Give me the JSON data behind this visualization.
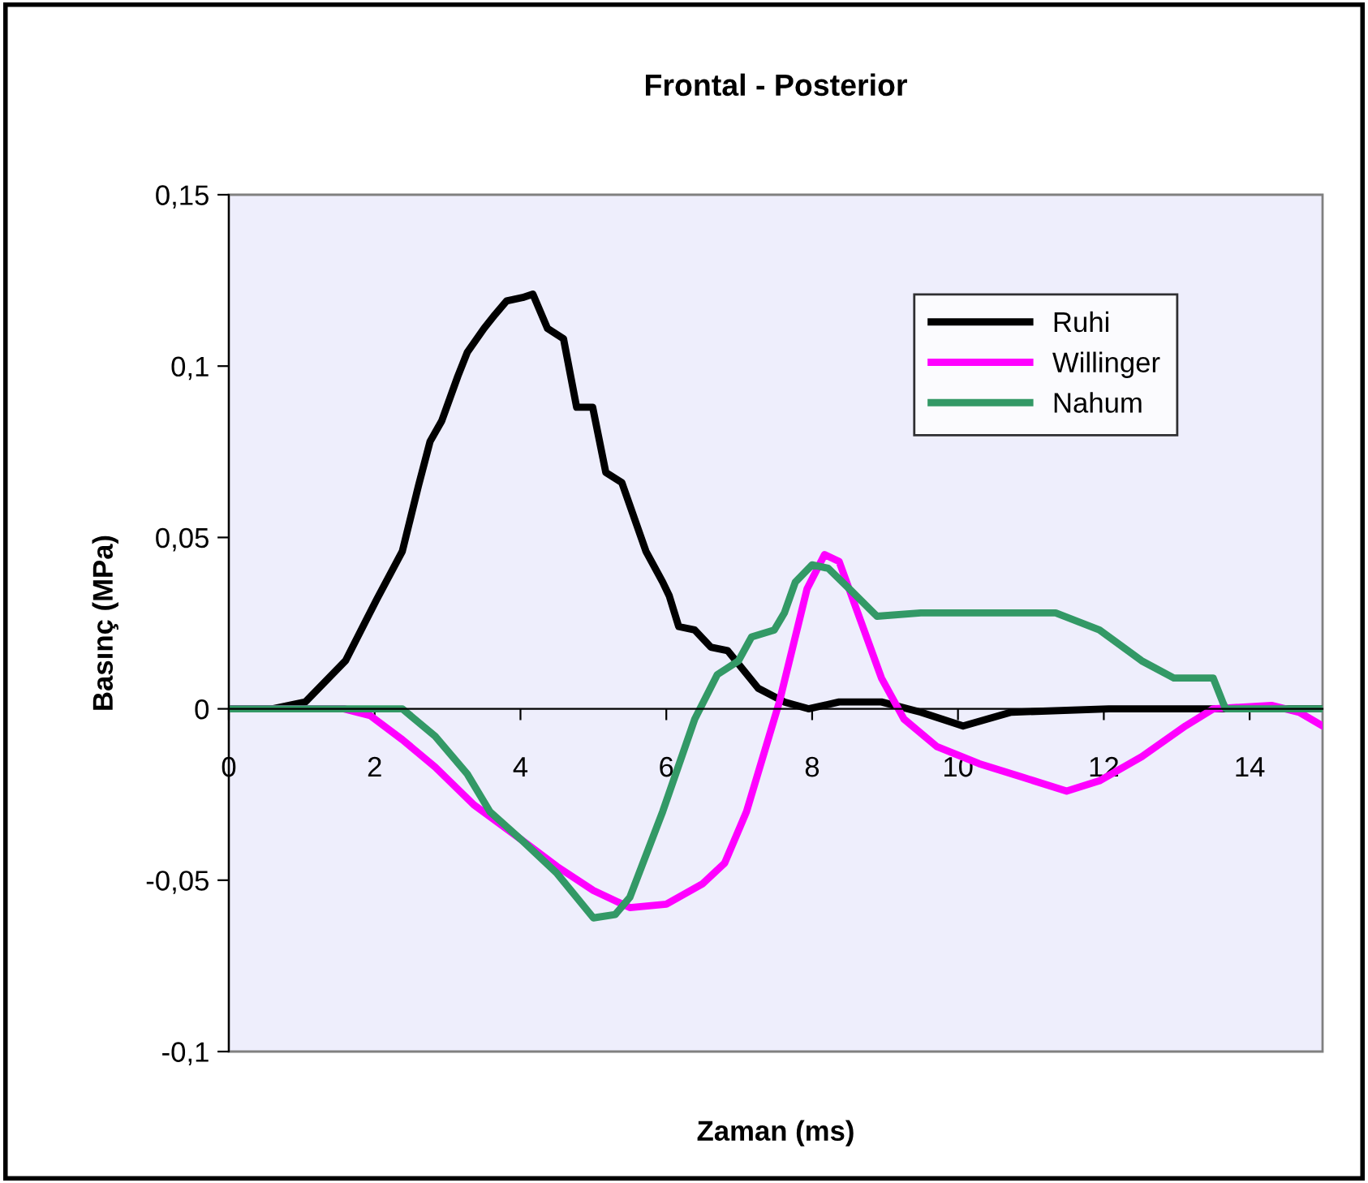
{
  "chart_data": {
    "type": "line",
    "title": "Frontal - Posterior",
    "xlabel": "Zaman (ms)",
    "ylabel": "Basınç (MPa)",
    "xlim": [
      0,
      15
    ],
    "ylim": [
      -0.1,
      0.15
    ],
    "xticks": [
      0,
      2,
      4,
      6,
      8,
      10,
      12,
      14
    ],
    "yticks": [
      {
        "value": -0.1,
        "label": "-0,1"
      },
      {
        "value": -0.05,
        "label": "-0,05"
      },
      0,
      {
        "value": 0.05,
        "label": "0,05"
      },
      {
        "value": 0.1,
        "label": "0,1"
      },
      {
        "value": 0.15,
        "label": "0,15"
      }
    ],
    "legend": "top right",
    "grid": false,
    "marker": "none",
    "line_style": "solid",
    "series": [
      {
        "name": "Ruhi",
        "color": "#000000",
        "x": [
          0,
          0.6,
          1.05,
          1.6,
          2.03,
          2.38,
          2.6,
          2.76,
          2.92,
          3.14,
          3.27,
          3.5,
          3.65,
          3.81,
          4.03,
          4.17,
          4.37,
          4.59,
          4.77,
          4.99,
          5.17,
          5.39,
          5.72,
          5.95,
          6.04,
          6.17,
          6.39,
          6.61,
          6.84,
          7.26,
          7.62,
          7.95,
          8.37,
          8.95,
          9.49,
          10.07,
          10.73,
          12.07,
          15
        ],
        "values": [
          0,
          0,
          0.002,
          0.014,
          0.032,
          0.046,
          0.065,
          0.078,
          0.084,
          0.097,
          0.104,
          0.111,
          0.115,
          0.119,
          0.12,
          0.121,
          0.111,
          0.108,
          0.088,
          0.088,
          0.069,
          0.066,
          0.046,
          0.037,
          0.033,
          0.024,
          0.023,
          0.018,
          0.017,
          0.006,
          0.002,
          0,
          0.002,
          0.002,
          -0.001,
          -0.005,
          -0.001,
          0,
          0
        ]
      },
      {
        "name": "Willinger",
        "color": "#ff00ff",
        "x": [
          0,
          1.58,
          1.94,
          2.38,
          2.83,
          3.36,
          4,
          4.5,
          5,
          5.5,
          6,
          6.5,
          6.8,
          7.1,
          7.55,
          7.93,
          8.17,
          8.37,
          8.66,
          8.95,
          9.26,
          9.71,
          10.29,
          10.89,
          11.49,
          11.94,
          12.52,
          13.12,
          13.5,
          14.3,
          14.68,
          15
        ],
        "values": [
          0,
          0,
          -0.002,
          -0.009,
          -0.017,
          -0.028,
          -0.038,
          -0.046,
          -0.053,
          -0.058,
          -0.057,
          -0.051,
          -0.045,
          -0.03,
          0.002,
          0.035,
          0.045,
          0.043,
          0.026,
          0.009,
          -0.003,
          -0.011,
          -0.016,
          -0.02,
          -0.024,
          -0.021,
          -0.014,
          -0.005,
          0,
          0.001,
          -0.001,
          -0.005
        ]
      },
      {
        "name": "Nahum",
        "color": "#339966",
        "x": [
          0,
          2.38,
          2.83,
          3.27,
          3.58,
          4,
          4.5,
          5,
          5.3,
          5.5,
          5.95,
          6.39,
          6.7,
          6.99,
          7.17,
          7.48,
          7.62,
          7.77,
          8,
          8.22,
          8.51,
          8.89,
          9.49,
          10.6,
          11.34,
          11.94,
          12.52,
          12.96,
          13.5,
          13.63,
          13.67,
          15
        ],
        "values": [
          0,
          0,
          -0.008,
          -0.019,
          -0.03,
          -0.038,
          -0.048,
          -0.061,
          -0.06,
          -0.055,
          -0.03,
          -0.003,
          0.01,
          0.014,
          0.021,
          0.023,
          0.028,
          0.037,
          0.042,
          0.041,
          0.035,
          0.027,
          0.028,
          0.028,
          0.028,
          0.023,
          0.014,
          0.009,
          0.009,
          0.002,
          0,
          0
        ]
      }
    ]
  }
}
